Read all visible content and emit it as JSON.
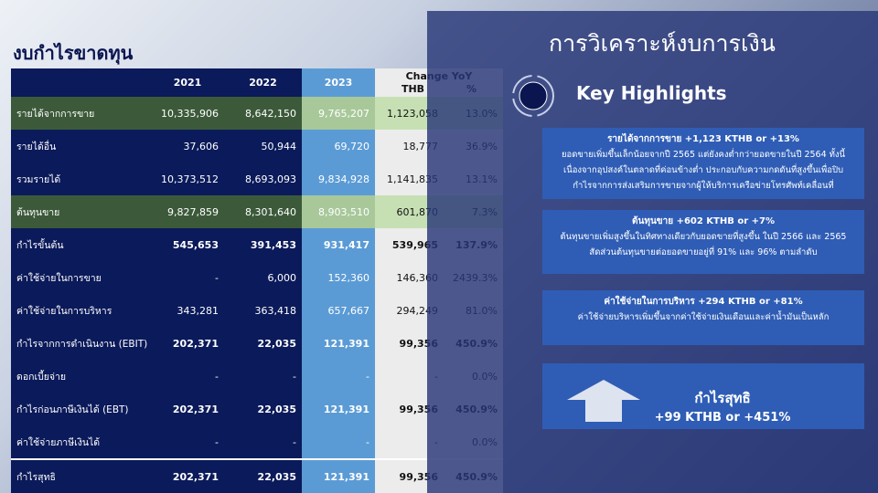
{
  "header": {
    "title": "งบกำไรขาดทุน"
  },
  "table": {
    "columns": [
      "2021",
      "2022",
      "2023"
    ],
    "change_title": "Change YoY",
    "change_columns": [
      "THB",
      "%"
    ],
    "rows": [
      {
        "label": "รายได้จากการขาย",
        "cells": [
          "10,335,906",
          "8,642,150",
          "9,765,207",
          "1,123,058",
          "13.0%"
        ],
        "highlight": true,
        "bold": false
      },
      {
        "label": "รายได้อื่น",
        "cells": [
          "37,606",
          "50,944",
          "69,720",
          "18,777",
          "36.9%"
        ],
        "highlight": false,
        "bold": false
      },
      {
        "label": "รวมรายได้",
        "cells": [
          "10,373,512",
          "8,693,093",
          "9,834,928",
          "1,141,835",
          "13.1%"
        ],
        "highlight": false,
        "bold": false
      },
      {
        "label": "ต้นทุนขาย",
        "cells": [
          "9,827,859",
          "8,301,640",
          "8,903,510",
          "601,870",
          "7.3%"
        ],
        "highlight": true,
        "bold": false
      },
      {
        "label": "กำไรขั้นต้น",
        "cells": [
          "545,653",
          "391,453",
          "931,417",
          "539,965",
          "137.9%"
        ],
        "highlight": false,
        "bold": true
      },
      {
        "label": "ค่าใช้จ่ายในการขาย",
        "cells": [
          "-",
          "6,000",
          "152,360",
          "146,360",
          "2439.3%"
        ],
        "highlight": false,
        "bold": false
      },
      {
        "label": "ค่าใช้จ่ายในการบริหาร",
        "cells": [
          "343,281",
          "363,418",
          "657,667",
          "294,249",
          "81.0%"
        ],
        "highlight": false,
        "bold": false
      },
      {
        "label": "กำไรจากการดำเนินงาน (EBIT)",
        "cells": [
          "202,371",
          "22,035",
          "121,391",
          "99,356",
          "450.9%"
        ],
        "highlight": false,
        "bold": true
      },
      {
        "label": "ดอกเบี้ยจ่าย",
        "cells": [
          "-",
          "-",
          "-",
          "-",
          "0.0%"
        ],
        "highlight": false,
        "bold": false
      },
      {
        "label": "กำไรก่อนภาษีเงินได้ (EBT)",
        "cells": [
          "202,371",
          "22,035",
          "121,391",
          "99,356",
          "450.9%"
        ],
        "highlight": false,
        "bold": true
      },
      {
        "label": "ค่าใช้จ่ายภาษีเงินได้",
        "cells": [
          "-",
          "-",
          "-",
          "-",
          "0.0%"
        ],
        "highlight": false,
        "bold": false
      },
      {
        "label": "กำไรสุทธิ",
        "cells": [
          "202,371",
          "22,035",
          "121,391",
          "99,356",
          "450.9%"
        ],
        "highlight": false,
        "bold": true
      }
    ]
  },
  "panel": {
    "title": "การวิเคราะห์งบการเงิน",
    "subtitle": "Key Highlights",
    "highlights": [
      {
        "title": "รายได้จากการขาย +1,123 KTHB or +13%",
        "lines": [
          "ยอดขายเพิ่มขึ้นเล็กน้อยจากปี 2565 แต่ยังคงต่ำกว่ายอดขายในปี 2564 ทั้งนี้",
          "เนื่องจากอุปสงค์ในตลาดที่ค่อนข้างต่ำ ประกอบกับความกดดันที่สูงขึ้นเพื่อปิบ",
          "กำไรจากการส่งเสริมการขายจากผู้ให้บริการเครือข่ายโทรศัพท์เคลื่อนที่"
        ]
      },
      {
        "title": "ต้นทุนขาย +602 KTHB or +7%",
        "lines": [
          "ต้นทุนขายเพิ่มสูงขึ้นในทิศทางเดียวกับยอดขายที่สูงขึ้น ในปี 2566 และ 2565",
          "สัดส่วนต้นทุนขายต่อยอดขายอยู่ที่ 91% และ 96% ตามลำดับ"
        ]
      },
      {
        "title": "ค่าใช้จ่ายในการบริหาร +294 KTHB or +81%",
        "lines": [
          "ค่าใช้จ่ายบริหารเพิ่มขึ้นจากค่าใช้จ่ายเงินเดือนและค่าน้ำมันเป็นหลัก"
        ]
      }
    ],
    "net_profit": {
      "title": "กำไรสุทธิ",
      "value": "+99 KTHB or +451%"
    }
  }
}
